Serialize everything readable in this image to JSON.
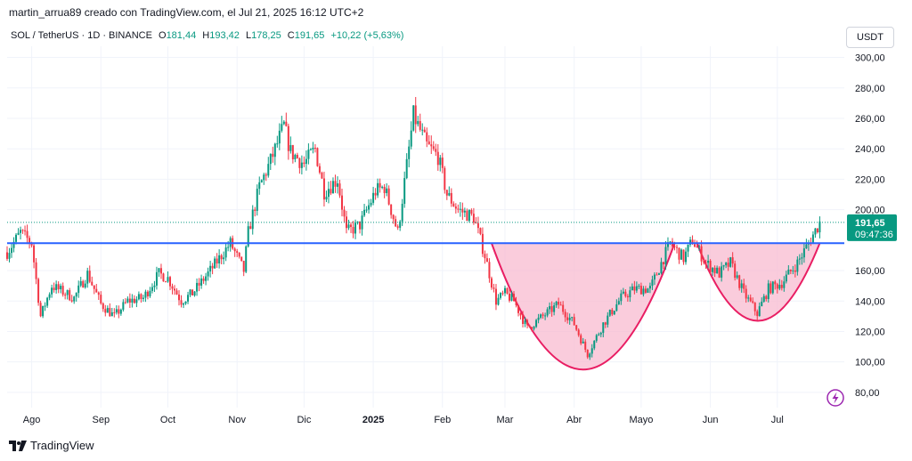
{
  "header": {
    "attribution": "martin_arrua89 creado con TradingView.com, el Jul 21, 2025 16:12 UTC+2",
    "symbol": "SOL / TetherUS · 1D · BINANCE",
    "ohlc": [
      {
        "label": "O",
        "value": "181,44"
      },
      {
        "label": "H",
        "value": "193,42"
      },
      {
        "label": "L",
        "value": "178,25"
      },
      {
        "label": "C",
        "value": "191,65"
      }
    ],
    "change": "+10,22 (+5,63%)",
    "currency": "USDT"
  },
  "footer": {
    "logo_text": "TradingView"
  },
  "colors": {
    "up": "#089981",
    "down": "#f23645",
    "support_line": "#2962ff",
    "pattern_fill": "#f8bbd0",
    "pattern_stroke": "#e91e63",
    "badge": "#089981",
    "lightning": "#9c27b0"
  },
  "chart_data": {
    "type": "candlestick",
    "y_range": [
      70,
      305
    ],
    "y_ticks": [
      {
        "value": 300,
        "label": "300,00"
      },
      {
        "value": 280,
        "label": "280,00"
      },
      {
        "value": 260,
        "label": "260,00"
      },
      {
        "value": 240,
        "label": "240,00"
      },
      {
        "value": 220,
        "label": "220,00"
      },
      {
        "value": 200,
        "label": "200,00"
      },
      {
        "value": 160,
        "label": "160,00"
      },
      {
        "value": 140,
        "label": "140,00"
      },
      {
        "value": 120,
        "label": "120,00"
      },
      {
        "value": 100,
        "label": "100,00"
      },
      {
        "value": 80,
        "label": "80,00"
      }
    ],
    "x_range": [
      "2024-07-21",
      "2025-07-31"
    ],
    "x_ticks": [
      {
        "date": "2024-08-01",
        "label": "Ago"
      },
      {
        "date": "2024-09-01",
        "label": "Sep"
      },
      {
        "date": "2024-10-01",
        "label": "Oct"
      },
      {
        "date": "2024-11-01",
        "label": "Nov"
      },
      {
        "date": "2024-12-01",
        "label": "Dic"
      },
      {
        "date": "2025-01-01",
        "label": "2025"
      },
      {
        "date": "2025-02-01",
        "label": "Feb"
      },
      {
        "date": "2025-03-01",
        "label": "Mar"
      },
      {
        "date": "2025-04-01",
        "label": "Abr"
      },
      {
        "date": "2025-05-01",
        "label": "Mayo"
      },
      {
        "date": "2025-06-01",
        "label": "Jun"
      },
      {
        "date": "2025-07-01",
        "label": "Jul"
      }
    ],
    "last_price": {
      "value": 191.65,
      "label": "191,65",
      "countdown": "09:47:36"
    },
    "support_level": 178,
    "price_path": [
      [
        "2024-07-21",
        172
      ],
      [
        "2024-07-27",
        185
      ],
      [
        "2024-08-01",
        178
      ],
      [
        "2024-08-05",
        130
      ],
      [
        "2024-08-10",
        150
      ],
      [
        "2024-08-20",
        142
      ],
      [
        "2024-08-26",
        158
      ],
      [
        "2024-09-01",
        138
      ],
      [
        "2024-09-07",
        130
      ],
      [
        "2024-09-13",
        140
      ],
      [
        "2024-09-20",
        142
      ],
      [
        "2024-09-27",
        158
      ],
      [
        "2024-10-01",
        155
      ],
      [
        "2024-10-07",
        140
      ],
      [
        "2024-10-12",
        145
      ],
      [
        "2024-10-20",
        160
      ],
      [
        "2024-10-29",
        178
      ],
      [
        "2024-11-04",
        160
      ],
      [
        "2024-11-06",
        185
      ],
      [
        "2024-11-11",
        215
      ],
      [
        "2024-11-16",
        232
      ],
      [
        "2024-11-22",
        255
      ],
      [
        "2024-11-25",
        238
      ],
      [
        "2024-12-01",
        230
      ],
      [
        "2024-12-06",
        240
      ],
      [
        "2024-12-10",
        212
      ],
      [
        "2024-12-16",
        220
      ],
      [
        "2024-12-20",
        185
      ],
      [
        "2024-12-26",
        190
      ],
      [
        "2025-01-02",
        212
      ],
      [
        "2025-01-06",
        215
      ],
      [
        "2025-01-12",
        185
      ],
      [
        "2025-01-19",
        262
      ],
      [
        "2025-01-25",
        242
      ],
      [
        "2025-01-30",
        235
      ],
      [
        "2025-02-03",
        210
      ],
      [
        "2025-02-08",
        200
      ],
      [
        "2025-02-15",
        195
      ],
      [
        "2025-02-20",
        170
      ],
      [
        "2025-02-25",
        140
      ],
      [
        "2025-03-01",
        145
      ],
      [
        "2025-03-05",
        140
      ],
      [
        "2025-03-11",
        122
      ],
      [
        "2025-03-18",
        130
      ],
      [
        "2025-03-25",
        138
      ],
      [
        "2025-04-01",
        125
      ],
      [
        "2025-04-07",
        105
      ],
      [
        "2025-04-14",
        125
      ],
      [
        "2025-04-22",
        142
      ],
      [
        "2025-04-28",
        148
      ],
      [
        "2025-05-05",
        148
      ],
      [
        "2025-05-10",
        165
      ],
      [
        "2025-05-14",
        178
      ],
      [
        "2025-05-20",
        168
      ],
      [
        "2025-05-24",
        180
      ],
      [
        "2025-05-30",
        165
      ],
      [
        "2025-06-05",
        158
      ],
      [
        "2025-06-10",
        165
      ],
      [
        "2025-06-16",
        145
      ],
      [
        "2025-06-22",
        132
      ],
      [
        "2025-06-27",
        148
      ],
      [
        "2025-07-03",
        152
      ],
      [
        "2025-07-10",
        165
      ],
      [
        "2025-07-15",
        178
      ],
      [
        "2025-07-20",
        191.65
      ]
    ],
    "cup_pattern": [
      {
        "start": [
          "2025-02-23",
          178
        ],
        "bottom": [
          "2025-04-05",
          95
        ],
        "end": [
          "2025-05-16",
          178
        ]
      },
      {
        "start": [
          "2025-05-26",
          178
        ],
        "bottom": [
          "2025-06-22",
          127
        ],
        "end": [
          "2025-07-20",
          178
        ]
      }
    ]
  }
}
